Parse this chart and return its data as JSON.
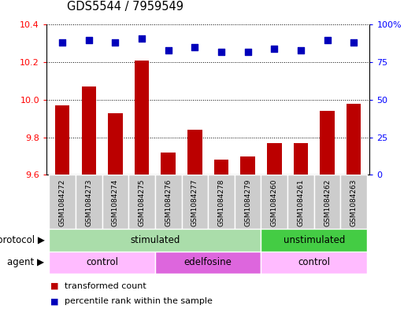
{
  "title": "GDS5544 / 7959549",
  "samples": [
    "GSM1084272",
    "GSM1084273",
    "GSM1084274",
    "GSM1084275",
    "GSM1084276",
    "GSM1084277",
    "GSM1084278",
    "GSM1084279",
    "GSM1084260",
    "GSM1084261",
    "GSM1084262",
    "GSM1084263"
  ],
  "transformed_counts": [
    9.97,
    10.07,
    9.93,
    10.21,
    9.72,
    9.84,
    9.68,
    9.7,
    9.77,
    9.77,
    9.94,
    9.98
  ],
  "percentile_ranks": [
    88,
    90,
    88,
    91,
    83,
    85,
    82,
    82,
    84,
    83,
    90,
    88
  ],
  "ylim_left": [
    9.6,
    10.4
  ],
  "ylim_right": [
    0,
    100
  ],
  "yticks_left": [
    9.6,
    9.8,
    10.0,
    10.2,
    10.4
  ],
  "yticks_right": [
    0,
    25,
    50,
    75,
    100
  ],
  "bar_color": "#bb0000",
  "dot_color": "#0000bb",
  "protocol_groups": [
    {
      "label": "stimulated",
      "start": 0,
      "end": 8,
      "color": "#aaddaa"
    },
    {
      "label": "unstimulated",
      "start": 8,
      "end": 12,
      "color": "#44cc44"
    }
  ],
  "agent_groups": [
    {
      "label": "control",
      "start": 0,
      "end": 4,
      "color": "#ffbbff"
    },
    {
      "label": "edelfosine",
      "start": 4,
      "end": 8,
      "color": "#dd66dd"
    },
    {
      "label": "control",
      "start": 8,
      "end": 12,
      "color": "#ffbbff"
    }
  ],
  "legend_items": [
    {
      "label": "transformed count",
      "color": "#bb0000"
    },
    {
      "label": "percentile rank within the sample",
      "color": "#0000bb"
    }
  ],
  "bar_width": 0.55,
  "dot_size": 30
}
